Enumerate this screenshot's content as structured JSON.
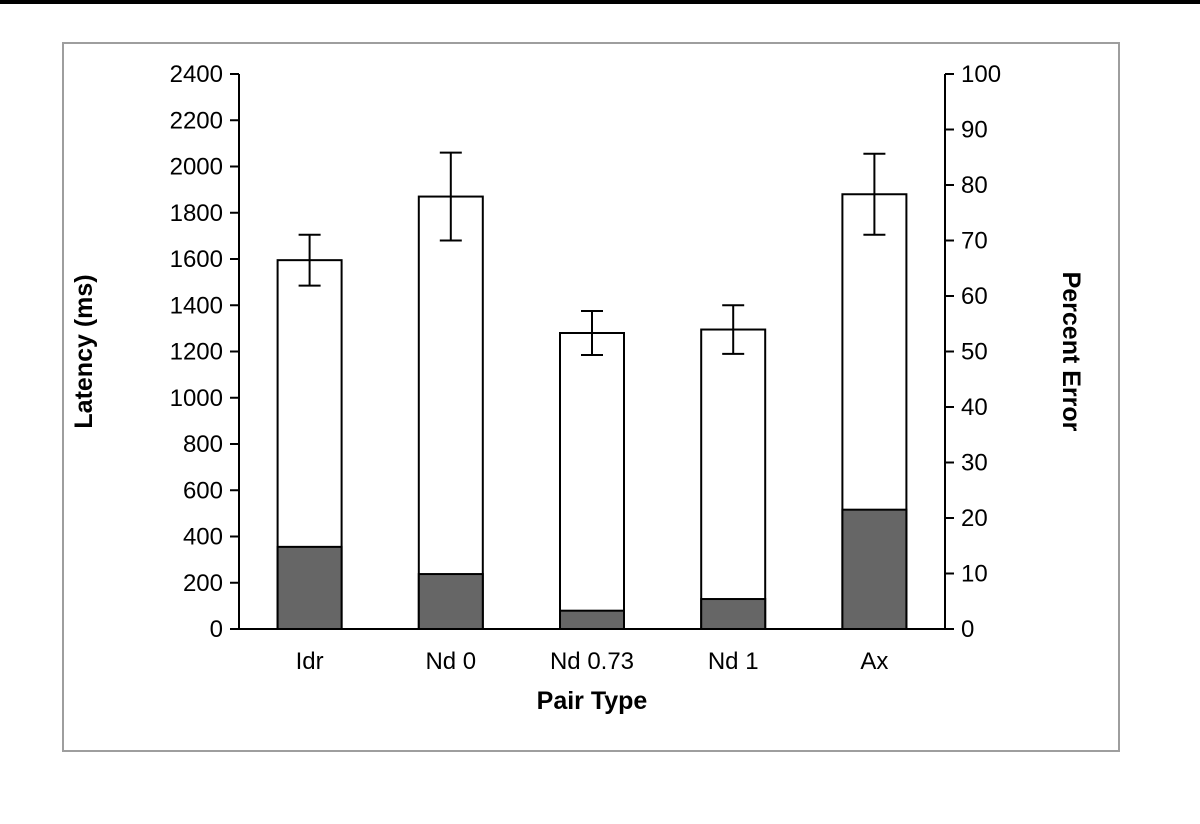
{
  "chart_data": {
    "type": "bar",
    "title": "",
    "categories": [
      "Idr",
      "Nd 0",
      "Nd 0.73",
      "Nd 1",
      "Ax"
    ],
    "series": [
      {
        "name": "Latency (ms)",
        "axis": "left",
        "values": [
          1595,
          1870,
          1280,
          1295,
          1880
        ],
        "error_bars": [
          110,
          190,
          95,
          105,
          175
        ],
        "fill": "#ffffff",
        "stroke": "#000000"
      },
      {
        "name": "Percent Error",
        "axis": "right",
        "values": [
          14.8,
          9.9,
          3.3,
          5.4,
          21.5
        ],
        "fill": "#666666",
        "stroke": "#000000"
      }
    ],
    "left_axis": {
      "label": "Latency (ms)",
      "min": 0,
      "max": 2400,
      "step": 200
    },
    "right_axis": {
      "label": "Percent Error",
      "min": 0,
      "max": 100,
      "step": 10
    },
    "xlabel": "Pair Type",
    "grid": false,
    "legend": "none"
  },
  "colors": {
    "bar_gray": "#666666",
    "bar_outline": "#000000",
    "frame_border": "#9e9e9e",
    "axis": "#000000"
  }
}
